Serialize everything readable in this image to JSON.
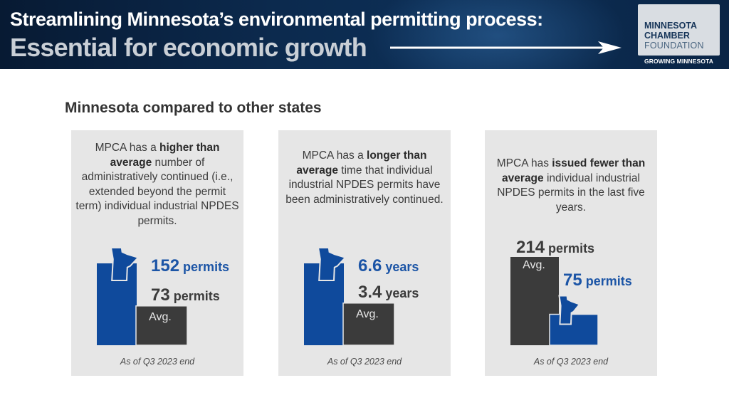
{
  "header": {
    "title_line1": "Streamlining Minnesota’s environmental permitting process:",
    "title_line2": "Essential for economic growth",
    "logo": {
      "line1": "MINNESOTA",
      "line2": "CHAMBER",
      "line3": "FOUNDATION",
      "tagline": "GROWING MINNESOTA"
    }
  },
  "section_title": "Minnesota compared to other states",
  "colors": {
    "minnesota": "#0f4a9c",
    "average": "#3b3b3b",
    "mn_label": "#1c55a6",
    "avg_label": "#3b3b3b"
  },
  "panels": [
    {
      "desc": [
        {
          "t": "MPCA has a ",
          "b": false
        },
        {
          "t": "higher than average",
          "b": true
        },
        {
          "t": " number of administratively continued (i.e., extended beyond the permit term) individual industrial NPDES permits.",
          "b": false
        }
      ],
      "footnote": "As of Q3 2023 end"
    },
    {
      "desc": [
        {
          "t": "MPCA has a ",
          "b": false
        },
        {
          "t": "longer than average",
          "b": true
        },
        {
          "t": " time that individual industrial NPDES permits have been administratively continued.",
          "b": false
        }
      ],
      "footnote": "As of Q3 2023 end"
    },
    {
      "desc": [
        {
          "t": "MPCA has ",
          "b": false
        },
        {
          "t": "issued fewer than average",
          "b": true
        },
        {
          "t": " individual industrial NPDES permits in the last five years.",
          "b": false
        }
      ],
      "footnote": "As of Q3 2023 end"
    }
  ],
  "chart_data": [
    {
      "type": "bar",
      "categories": [
        "Minnesota",
        "Avg."
      ],
      "values": [
        152,
        73
      ],
      "unit": "permits",
      "value_labels": [
        "152",
        "73"
      ]
    },
    {
      "type": "bar",
      "categories": [
        "Minnesota",
        "Avg."
      ],
      "values": [
        6.6,
        3.4
      ],
      "unit": "years",
      "value_labels": [
        "6.6",
        "3.4"
      ]
    },
    {
      "type": "bar",
      "categories": [
        "Avg.",
        "Minnesota"
      ],
      "values": [
        214,
        75
      ],
      "unit": "permits",
      "value_labels": [
        "214",
        "75"
      ]
    }
  ]
}
